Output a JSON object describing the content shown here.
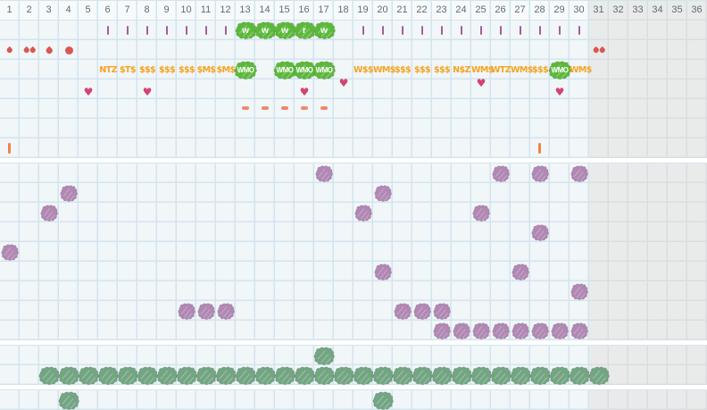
{
  "app": {
    "name": "monthly-cycle-chart"
  },
  "grid": {
    "columns": 36,
    "cell_size": 22,
    "shaded_from_column": 31,
    "day_labels": [
      "1",
      "2",
      "3",
      "4",
      "5",
      "6",
      "7",
      "8",
      "9",
      "10",
      "11",
      "12",
      "13",
      "14",
      "15",
      "16",
      "17",
      "18",
      "19",
      "20",
      "21",
      "22",
      "23",
      "24",
      "25",
      "26",
      "27",
      "28",
      "29",
      "30",
      "31",
      "32",
      "33",
      "34",
      "35",
      "36"
    ]
  },
  "colors": {
    "background": "#f1f6f8",
    "grid_line": "#d3e4ee",
    "header_bg": "#f7fafb",
    "shaded_background": "#e9ebeb",
    "shaded_grid_line": "#dadddf",
    "header_text": "#636a72",
    "plum_tick": "#a25f98",
    "flow_red": "#d95752",
    "money_orange": "#f6a31f",
    "heart_pink": "#d24470",
    "dash_salmon": "#ee8a68",
    "orange_tick": "#ef8347",
    "bright_green": "#5cb83b",
    "sage_green": "#73a583",
    "purple_stamp": "#b187b3"
  },
  "top_section": {
    "row_count": 8,
    "plum_ticks": {
      "row": 1,
      "columns": [
        6,
        7,
        8,
        9,
        10,
        11,
        12,
        19,
        20,
        21,
        22,
        23,
        24,
        25,
        26,
        27,
        28,
        29,
        30
      ]
    },
    "letter_stamps": {
      "row": 1,
      "items": [
        {
          "col": 13,
          "letter": "w"
        },
        {
          "col": 14,
          "letter": "w"
        },
        {
          "col": 15,
          "letter": "w"
        },
        {
          "col": 16,
          "letter": "r"
        },
        {
          "col": 17,
          "letter": "w"
        }
      ]
    },
    "flow_marks": {
      "row": 2,
      "items": [
        {
          "col": 1,
          "type": "drop",
          "size": "small"
        },
        {
          "col": 2,
          "type": "double-drop",
          "size": "small"
        },
        {
          "col": 3,
          "type": "drop",
          "size": "medium"
        },
        {
          "col": 4,
          "type": "dot",
          "size": "large"
        },
        {
          "col": 31,
          "type": "double-drop",
          "size": "small"
        }
      ]
    },
    "code_labels": {
      "row": 3,
      "items": [
        {
          "col": 6,
          "text": "NTZ"
        },
        {
          "col": 7,
          "text": "$T$"
        },
        {
          "col": 8,
          "text": "$$$"
        },
        {
          "col": 9,
          "text": "$$$"
        },
        {
          "col": 10,
          "text": "$$$"
        },
        {
          "col": 11,
          "text": "$M$"
        },
        {
          "col": 12,
          "text": "$M$"
        },
        {
          "col": 19,
          "text": "W$$"
        },
        {
          "col": 20,
          "text": "WM$"
        },
        {
          "col": 21,
          "text": "$$$"
        },
        {
          "col": 22,
          "text": "$$$"
        },
        {
          "col": 23,
          "text": "$$$"
        },
        {
          "col": 24,
          "text": "N$Z"
        },
        {
          "col": 25,
          "text": "WM$"
        },
        {
          "col": 26,
          "text": "WTZ"
        },
        {
          "col": 27,
          "text": "WM$"
        },
        {
          "col": 28,
          "text": "$$$"
        },
        {
          "col": 30,
          "text": "WM$"
        }
      ]
    },
    "label_stamps": {
      "row": 3,
      "text": "WMO",
      "columns": [
        13,
        15,
        16,
        17,
        29
      ]
    },
    "hearts": {
      "row": 4,
      "items": [
        {
          "col": 5,
          "pos": "low"
        },
        {
          "col": 8,
          "pos": "low"
        },
        {
          "col": 16,
          "pos": "low"
        },
        {
          "col": 18,
          "pos": "high"
        },
        {
          "col": 25,
          "pos": "high"
        },
        {
          "col": 29,
          "pos": "low"
        }
      ]
    },
    "dashes": {
      "row": 5,
      "columns": [
        13,
        14,
        15,
        16,
        17
      ]
    },
    "orange_ticks": {
      "row": 7,
      "columns": [
        1,
        28
      ]
    }
  },
  "chart_section": {
    "row_count": 9,
    "points": [
      {
        "row": 0,
        "cols": [
          17,
          26,
          28,
          30
        ]
      },
      {
        "row": 1,
        "cols": [
          4,
          20
        ]
      },
      {
        "row": 2,
        "cols": [
          3,
          19,
          25
        ]
      },
      {
        "row": 3,
        "cols": [
          28
        ]
      },
      {
        "row": 4,
        "cols": [
          1
        ]
      },
      {
        "row": 5,
        "cols": [
          20,
          27
        ]
      },
      {
        "row": 6,
        "cols": [
          30
        ]
      },
      {
        "row": 7,
        "cols": [
          10,
          11,
          12,
          21,
          22,
          23
        ]
      },
      {
        "row": 8,
        "cols": [
          23,
          24,
          25,
          26,
          27,
          28,
          29,
          30
        ]
      }
    ]
  },
  "green_section": {
    "row_count": 2,
    "stamps": [
      {
        "row": 0,
        "cols": [
          17
        ]
      },
      {
        "row": 1,
        "cols": [
          3,
          4,
          5,
          6,
          7,
          8,
          9,
          10,
          11,
          12,
          13,
          14,
          15,
          16,
          17,
          18,
          19,
          20,
          21,
          22,
          23,
          24,
          25,
          26,
          27,
          28,
          29,
          30,
          31
        ]
      }
    ]
  },
  "bottom_section": {
    "row_count": 1,
    "stamps": [
      {
        "row": 0,
        "cols": [
          4,
          20
        ]
      }
    ]
  }
}
